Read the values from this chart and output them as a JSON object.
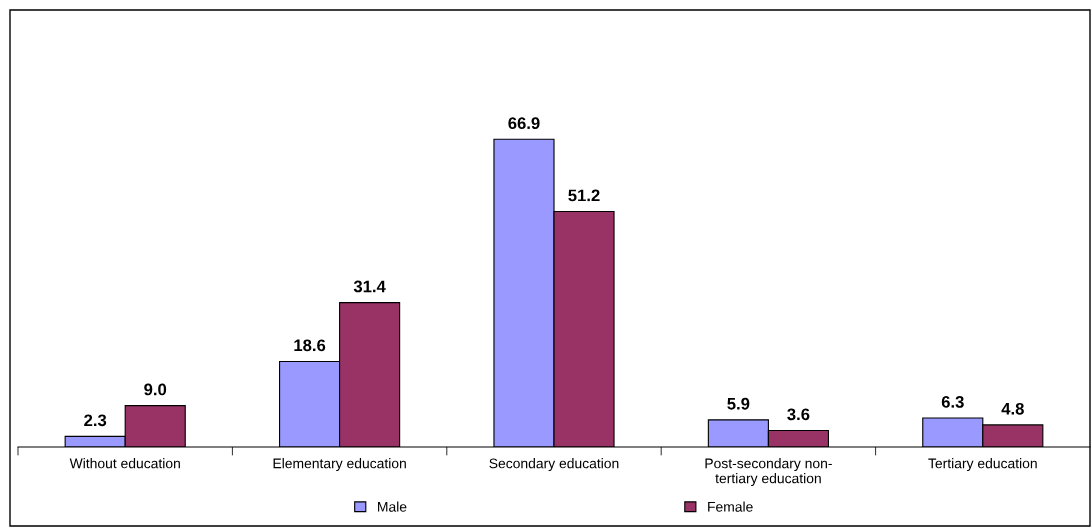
{
  "chart_data": {
    "type": "bar",
    "categories": [
      "Without education",
      "Elementary education",
      "Secondary education",
      "Post-secondary non-\ntertiary education",
      "Tertiary education"
    ],
    "series": [
      {
        "name": "Male",
        "color": "#9999ff",
        "values": [
          2.3,
          18.6,
          66.9,
          5.9,
          6.3
        ],
        "value_labels": [
          "2.3",
          "18.6",
          "66.9",
          "5.9",
          "6.3"
        ]
      },
      {
        "name": "Female",
        "color": "#993366",
        "values": [
          9.0,
          31.4,
          51.2,
          3.6,
          4.8
        ],
        "value_labels": [
          "9.0",
          "31.4",
          "51.2",
          "3.6",
          "4.8"
        ]
      }
    ],
    "legend": "bottom",
    "grid": false
  }
}
